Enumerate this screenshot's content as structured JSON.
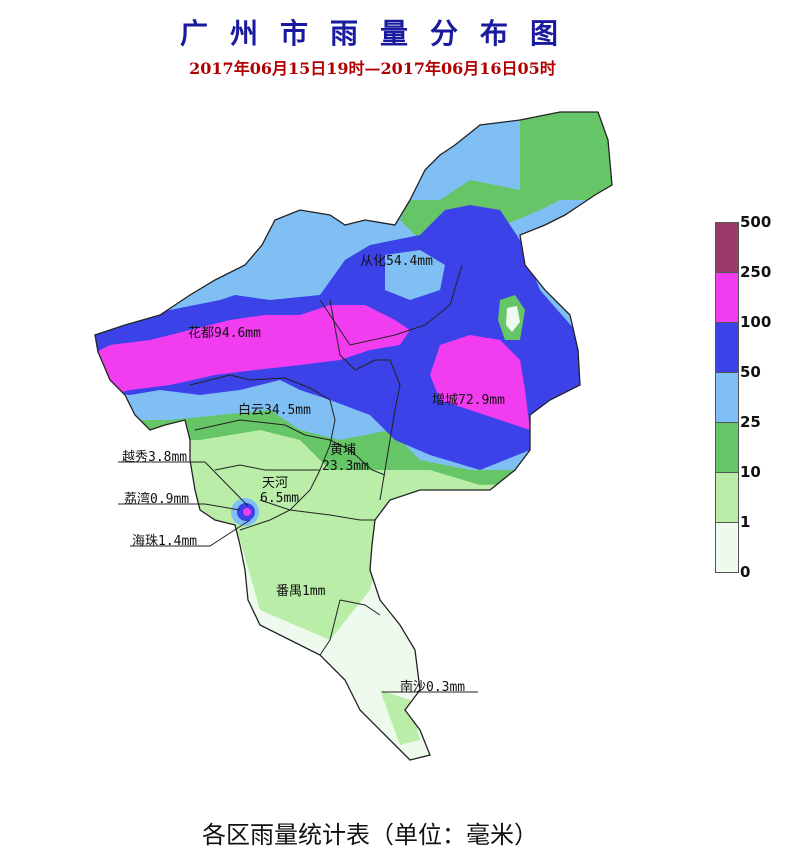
{
  "title": "广州市雨量分布图",
  "subtitle": "2017年06月15日19时—2017年06月16日05时",
  "footer": "各区雨量统计表（单位：毫米）",
  "districts": {
    "conghua": "从化54.4mm",
    "huadu": "花都94.6mm",
    "zengcheng": "增城72.9mm",
    "baiyun": "白云34.5mm",
    "huangpu_name": "黄埔",
    "huangpu_value": "23.3mm",
    "yuexiu": "越秀3.8mm",
    "tianhe_name": "天河",
    "tianhe_value": "6.5mm",
    "liwan": "荔湾0.9mm",
    "haizhu": "海珠1.4mm",
    "panyu": "番禺1mm",
    "nansha": "南沙0.3mm"
  },
  "legend": {
    "ticks": [
      "500",
      "250",
      "100",
      "50",
      "25",
      "10",
      "1",
      "0"
    ],
    "colors": [
      "#9b3b6a",
      "#f23cf0",
      "#3b43e8",
      "#80bff4",
      "#66c566",
      "#b9eda8",
      "#eefaee"
    ]
  }
}
